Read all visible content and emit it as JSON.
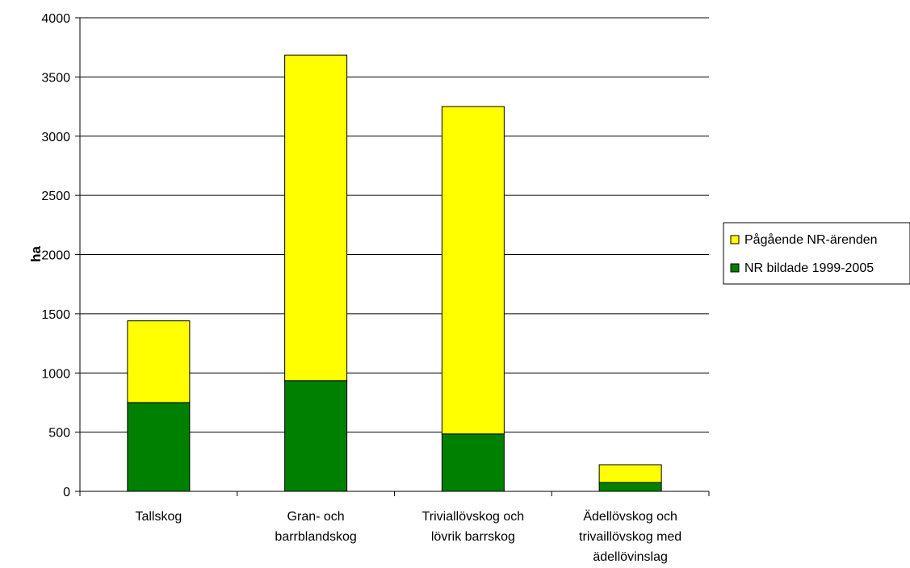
{
  "chart_data": {
    "type": "bar",
    "stacked": true,
    "categories": [
      [
        "Tallskog"
      ],
      [
        "Gran- och",
        "barrblandskog"
      ],
      [
        "Triviallövskog och",
        "lövrik barrskog"
      ],
      [
        "Ädellövskog och",
        "trivaillövskog med",
        "ädellövinslag"
      ]
    ],
    "series": [
      {
        "name": "NR bildade 1999-2005",
        "values": [
          750,
          935,
          485,
          75
        ],
        "color": "#008000"
      },
      {
        "name": "Pågående NR-ärenden",
        "values": [
          690,
          2750,
          2765,
          150
        ],
        "color": "#ffff00"
      }
    ],
    "ylabel": "ha",
    "ylim": [
      0,
      4000
    ],
    "yticks": [
      0,
      500,
      1000,
      1500,
      2000,
      2500,
      3000,
      3500,
      4000
    ],
    "grid": true,
    "legend": {
      "placement": "right",
      "entries": [
        "Pågående NR-ärenden",
        "NR bildade 1999-2005"
      ]
    }
  }
}
